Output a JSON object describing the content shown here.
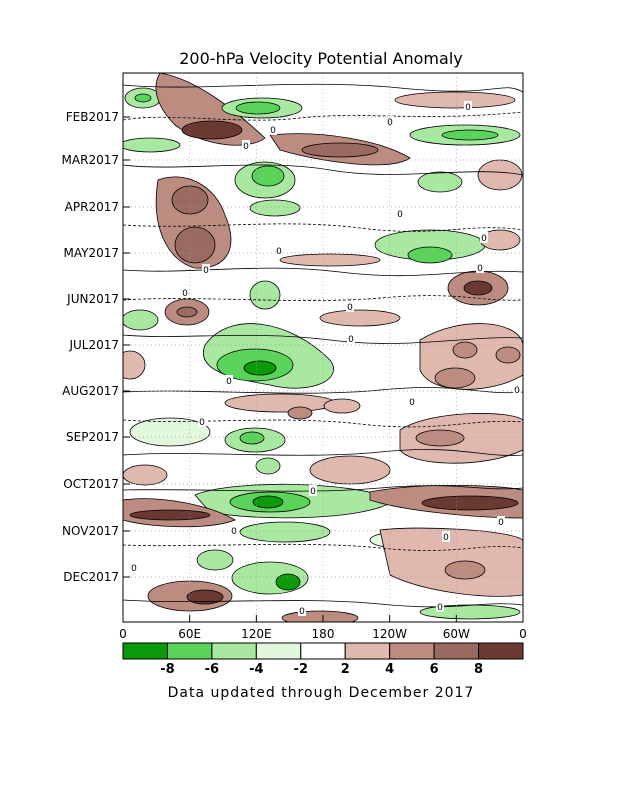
{
  "chart_data": {
    "type": "heatmap",
    "title": "200-hPa Velocity Potential Anomaly",
    "footer": "Data updated through December 2017",
    "x_ticks": [
      "0",
      "60E",
      "120E",
      "180",
      "120W",
      "60W",
      "0"
    ],
    "y_ticks": [
      "FEB2017",
      "MAR2017",
      "APR2017",
      "MAY2017",
      "JUN2017",
      "JUL2017",
      "AUG2017",
      "SEP2017",
      "OCT2017",
      "NOV2017",
      "DEC2017"
    ],
    "colorbar": {
      "labels": [
        "-8",
        "-6",
        "-4",
        "-2",
        "2",
        "4",
        "6",
        "8"
      ],
      "colors": [
        "#0a9a0a",
        "#5ad35a",
        "#a8e8a0",
        "#e2f8dc",
        "#ffffff",
        "#e0b8ae",
        "#bc8c80",
        "#9a6a60",
        "#6a3a32"
      ]
    },
    "contour_label": "0",
    "grid": "dotted"
  }
}
